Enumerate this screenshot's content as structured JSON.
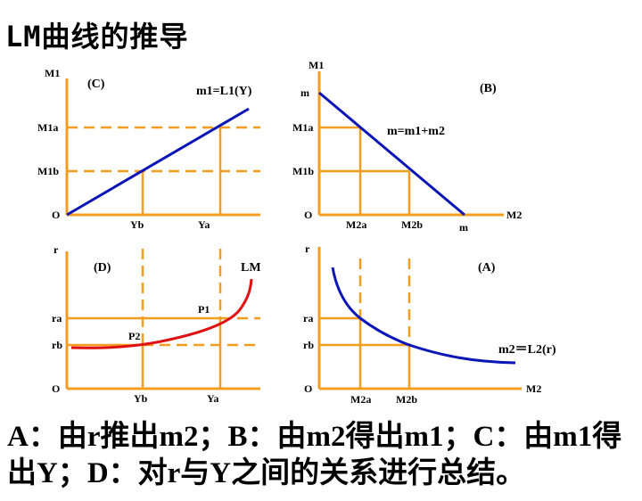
{
  "title": "LM曲线的推导",
  "colors": {
    "axis": "#F39C1F",
    "curve_blue": "#0B16B8",
    "curve_red": "#E01010"
  },
  "panel_c": {
    "tag": "(C)",
    "y_axis": "M1",
    "origin": "O",
    "curve_label": "m1=L1(Y)",
    "y_ticks": [
      "M1a",
      "M1b"
    ],
    "x_ticks": [
      "Yb",
      "Ya"
    ]
  },
  "panel_b": {
    "tag": "(B)",
    "y_axis": "M1",
    "x_axis": "M2",
    "origin": "O",
    "intercept": "m",
    "curve_label": "m=m1+m2",
    "y_ticks": [
      "M1a",
      "M1b"
    ],
    "x_ticks": [
      "M2a",
      "M2b"
    ]
  },
  "panel_d": {
    "tag": "(D)",
    "y_axis": "r",
    "origin": "O",
    "curve_label": "LM",
    "points": [
      "P1",
      "P2"
    ],
    "y_ticks": [
      "ra",
      "rb"
    ],
    "x_ticks": [
      "Yb",
      "Ya"
    ]
  },
  "panel_a": {
    "tag": "(A)",
    "y_axis": "r",
    "x_axis": "M2",
    "origin": "O",
    "curve_label": "m2＝L2(r)",
    "y_ticks": [
      "ra",
      "rb"
    ],
    "x_ticks": [
      "M2a",
      "M2b"
    ]
  },
  "summary": "A：由r推出m2；B：由m2得出m1；C：由m1得出Y；D：对r与Y之间的关系进行总结。"
}
